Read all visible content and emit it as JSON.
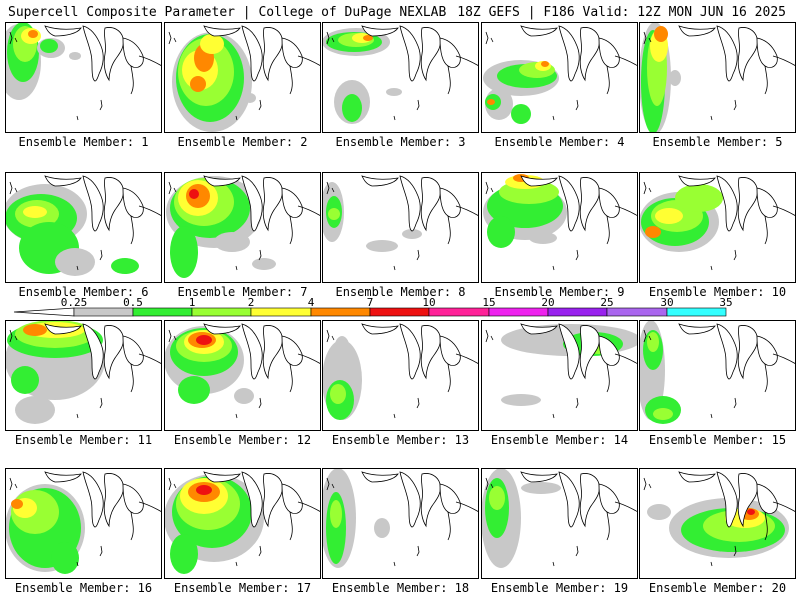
{
  "header": {
    "left_title": "Supercell Composite Parameter | College of DuPage NEXLAB",
    "right_title": "18Z GEFS | F186 Valid: 12Z MON JUN 16 2025"
  },
  "legend": {
    "ticks": [
      "0.25",
      "0.5",
      "1",
      "2",
      "4",
      "7",
      "10",
      "15",
      "20",
      "25",
      "30",
      "35"
    ],
    "colors": [
      "#c8c8c8",
      "#33ee33",
      "#99ff33",
      "#ffff33",
      "#ff8800",
      "#ee1111",
      "#ff2299",
      "#ee22ee",
      "#9922ee",
      "#aa66ee",
      "#33ffff"
    ]
  },
  "panel_label_prefix": "Ensemble Member:",
  "panels": [
    {
      "member": "1",
      "label": "Ensemble Member: 1"
    },
    {
      "member": "2",
      "label": "Ensemble Member: 2"
    },
    {
      "member": "3",
      "label": "Ensemble Member: 3"
    },
    {
      "member": "4",
      "label": "Ensemble Member: 4"
    },
    {
      "member": "5",
      "label": "Ensemble Member: 5"
    },
    {
      "member": "6",
      "label": "Ensemble Member: 6"
    },
    {
      "member": "7",
      "label": "Ensemble Member: 7"
    },
    {
      "member": "8",
      "label": "Ensemble Member: 8"
    },
    {
      "member": "9",
      "label": "Ensemble Member: 9"
    },
    {
      "member": "10",
      "label": "Ensemble Member: 10"
    },
    {
      "member": "11",
      "label": "Ensemble Member: 11"
    },
    {
      "member": "12",
      "label": "Ensemble Member: 12"
    },
    {
      "member": "13",
      "label": "Ensemble Member: 13"
    },
    {
      "member": "14",
      "label": "Ensemble Member: 14"
    },
    {
      "member": "15",
      "label": "Ensemble Member: 15"
    },
    {
      "member": "16",
      "label": "Ensemble Member: 16"
    },
    {
      "member": "17",
      "label": "Ensemble Member: 17"
    },
    {
      "member": "18",
      "label": "Ensemble Member: 18"
    },
    {
      "member": "19",
      "label": "Ensemble Member: 19"
    },
    {
      "member": "20",
      "label": "Ensemble Member: 20"
    }
  ]
}
